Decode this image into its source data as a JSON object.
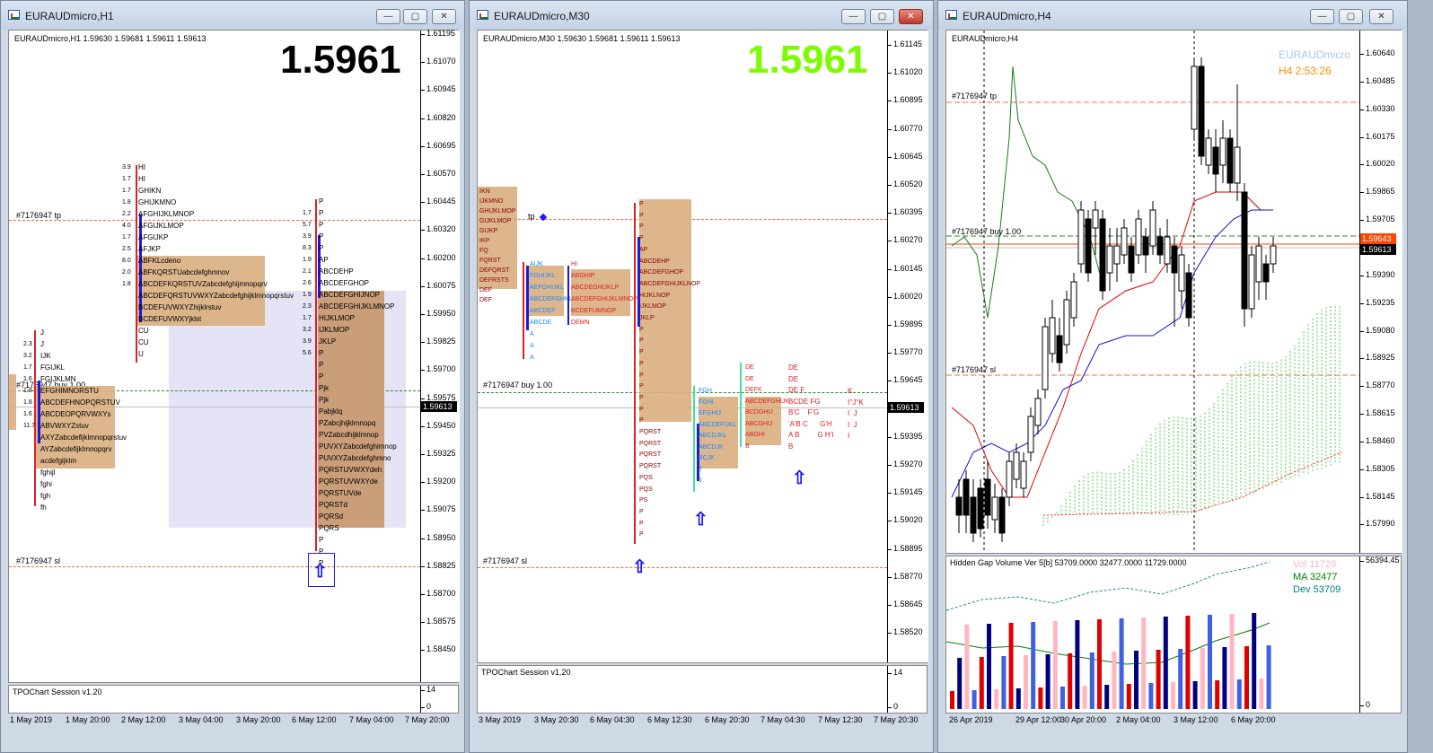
{
  "windows": [
    {
      "title": "EURAUDmicro,H1",
      "info": "EURAUDmicro,H1  1.59630 1.59681 1.59611 1.59613",
      "big_price": "1.5961",
      "big_color": "#000000",
      "price_ticks": [
        "1.61195",
        "1.61070",
        "1.60945",
        "1.60820",
        "1.60695",
        "1.60570",
        "1.60445",
        "1.60320",
        "1.60200",
        "1.60075",
        "1.59950",
        "1.59825",
        "1.59700",
        "1.59575",
        "1.59450",
        "1.59325",
        "1.59200",
        "1.59075",
        "1.58950",
        "1.58825",
        "1.58700",
        "1.58575",
        "1.58450"
      ],
      "current_price": "1.59613",
      "tp_label": "#7176947 tp",
      "buy_label": "#7176947 buy 1.00",
      "sl_label": "#7176947 sl",
      "sub_label": "TPOChart Session v1.20",
      "sub_ticks": [
        "14",
        "0"
      ],
      "time_ticks": [
        "1 May 2019",
        "1 May 20:00",
        "2 May 12:00",
        "3 May 04:00",
        "3 May 20:00",
        "6 May 12:00",
        "7 May 04:00",
        "7 May 20:00"
      ]
    },
    {
      "title": "EURAUDmicro,M30",
      "info": "EURAUDmicro,M30  1.59630 1.59681 1.59611 1.59613",
      "big_price": "1.5961",
      "big_color": "#7cfc00",
      "price_ticks": [
        "1.61145",
        "1.61020",
        "1.60895",
        "1.60770",
        "1.60645",
        "1.60520",
        "1.60395",
        "1.60270",
        "1.60145",
        "1.60020",
        "1.59895",
        "1.59770",
        "1.59645",
        "1.59520",
        "1.59395",
        "1.59270",
        "1.59145",
        "1.59020",
        "1.58895",
        "1.58770",
        "1.58645",
        "1.58520"
      ],
      "current_price": "1.59613",
      "tp_label": "tp",
      "buy_label": "#7176947 buy 1.00",
      "sl_label": "#7176947 sl",
      "sub_label": "TPOChart Session v1.20",
      "sub_ticks": [
        "14",
        "0"
      ],
      "time_ticks": [
        "3 May 2019",
        "3 May 20:30",
        "6 May 04:30",
        "6 May 12:30",
        "6 May 20:30",
        "7 May 04:30",
        "7 May 12:30",
        "7 May 20:30"
      ]
    },
    {
      "title": "EURAUDmicro,H4",
      "info": "EURAUDmicro,H4",
      "symbol_label": "EURAUDmicro",
      "timer_label": "H4   2:53:26",
      "price_ticks": [
        "1.60640",
        "1.60485",
        "1.60330",
        "1.60175",
        "1.60020",
        "1.59865",
        "1.59705",
        "1.59545",
        "1.59390",
        "1.59235",
        "1.59080",
        "1.58925",
        "1.58770",
        "1.58615",
        "1.58460",
        "1.58305",
        "1.58145",
        "1.57990"
      ],
      "current_price": "1.59613",
      "second_price": "1.59643",
      "tp_label": "#7176947 tp",
      "buy_label": "#7176947 buy 1.00",
      "sl_label": "#7176947 sl",
      "sub_label": "Hidden Gap Volume Ver 5[b] 53709.0000 32477.0000 11729.0000",
      "sub_top_tick": "56394.45",
      "sub_bottom_tick": "0",
      "legend": [
        {
          "name": "Vol",
          "value": "11729",
          "color": "#ffb6c1"
        },
        {
          "name": "MA",
          "value": "32477",
          "color": "#008000"
        },
        {
          "name": "Dev",
          "value": "53709",
          "color": "#008080"
        }
      ],
      "time_ticks": [
        "26 Apr 2019",
        "29 Apr 12:00",
        "30 Apr 20:00",
        "2 May 04:00",
        "3 May 12:00",
        "6 May 20:00"
      ]
    }
  ],
  "window_buttons": {
    "minimize": "—",
    "maximize": "▢",
    "close": "✕"
  },
  "tpo_h1_left": {
    "lines": [
      "J",
      "J",
      "IJK",
      "FGIJKL",
      "FGIJKLMN",
      "EFGHIMNORSTU",
      "ABCDEFHNOPQRSTUV",
      "ABCDEOPQRVWXYs",
      "ABVWXYZstuv",
      "AXYZabcdefijklmnopqrstuv",
      "AYZabcdefijklmnopqrv",
      "acdefgijklm",
      "fghijl",
      "fghi",
      "fgh",
      "fh"
    ],
    "nums": [
      "2.3",
      "3.2",
      "",
      "1.7",
      "1.6",
      "1.8",
      "",
      "",
      "",
      "",
      "1.8",
      "1.6",
      "",
      "11.7"
    ]
  },
  "tpo_h1_mid": {
    "lines": [
      "HI",
      "HI",
      "GHIKN",
      "GHIJKMNO",
      "AFGHIJKLMNOP",
      "AFGIJKLMOP",
      "AFGIJKP",
      "AFJKP",
      "ABFKLcdeno",
      "ABFKQRSTUabcdefghmnov",
      "ABCDEFKQRSTUVZabcdefghijmnopqrv",
      "ABCDEFQRSTUVWXYZabcdefghijklmnopqrstuv",
      "BCDEFUVWXYZhijklrstuv",
      "BCDEFUVWXYjklst",
      "CU",
      "CU",
      "U"
    ],
    "nums": [
      "3.9",
      "1.7",
      "1.7",
      "1.8",
      "",
      "",
      "",
      "2.2",
      "4.0",
      "1.7",
      "",
      "",
      "",
      "2.5",
      "8.0",
      "2.0",
      "1.8"
    ]
  },
  "tpo_h1_right": {
    "lines": [
      "P",
      "P",
      "P",
      "P",
      "P",
      "AP",
      "ABCDEHP",
      "ABCDEFGHOP",
      "ABCDEFGHIJNOP",
      "ABCDEFGHIJKLMNOP",
      "HIJKLMOP",
      "IJKLMOP",
      "JKLP",
      "P",
      "P",
      "P",
      "Pjk",
      "Pjk",
      "Pabjklq",
      "PZabcjhijklmnopq",
      "PVZabcdhijklmnop",
      "PUVXYZabcdefghimnop",
      "PUVXYZabcdefghmno",
      "PQRSTUVWXYdeh",
      "PQRSTUVWXYde",
      "PQRSTUVde",
      "PQRSTd",
      "PQRSd",
      "PQRS",
      "P",
      "P",
      "P"
    ],
    "nums": [
      "",
      "1.7",
      "5.7",
      "3.9",
      "",
      "",
      "",
      "",
      "",
      "",
      "",
      "",
      "",
      "",
      "8.3",
      "1.9",
      "2.1",
      "2.6",
      "",
      "",
      "",
      "",
      "1.9",
      "",
      "",
      "2.3",
      "1.7",
      "3.2",
      "3.9",
      "",
      "5.6"
    ]
  },
  "tpo_m30_left": {
    "lines": [
      "IKN",
      "IJKMNO",
      "GHIJKLMOP",
      "GIJKLMOP",
      "GIJKP",
      "IKP",
      "FQ",
      "FQRST",
      "DEFQRST",
      "DEFRSTS",
      "DEF",
      "DEF"
    ]
  },
  "tpo_m30_b": {
    "lines": [
      "AIJK",
      "FGHIJKL",
      "AEFGHIJKL",
      "ABCDEFGHKL",
      "ABCDEF",
      "ABCDE",
      "A",
      "A",
      "A"
    ]
  },
  "tpo_m30_c": {
    "lines": [
      "HI",
      "ABGHIP",
      "ABCDEGHIJKLP",
      "ABCDEFGHIJKLMNOP",
      "BCDEFIJMNOP",
      "DEMN"
    ]
  },
  "tpo_m30_d": {
    "lines": [
      "P",
      "P",
      "P",
      "P",
      "AP",
      "ABCDEHP",
      "ABCDEFGHOP",
      "ABCDEFGHIJKLNOP",
      "HIJKLNOP",
      "IJKLMOP",
      "JKLP",
      "P",
      "P",
      "P",
      "P",
      "P",
      "P",
      "P",
      "P",
      "P",
      "PQRST",
      "PQRST",
      "PQRST",
      "PQRST",
      "PQS",
      "PQS",
      "PS",
      "P",
      "P",
      "P"
    ]
  },
  "tpo_m30_e": {
    "lines": [
      "FGH",
      "FGHI",
      "EFGHIJ",
      "ABCDEFIJKL",
      "ABCDJKL",
      "ABCDJK",
      "BCJK",
      "J",
      "J"
    ]
  },
  "tpo_m30_f": {
    "lines": [
      "DE",
      "DE",
      "DEFK",
      "ABCDEFGHIJK",
      "BCDGHIJ",
      "ABCGHIJ",
      "ABGHI",
      "B"
    ]
  },
  "tpo_m30_g": {
    "lines": [
      "DE",
      "DE",
      "DE F",
      "BCDE FG",
      "B'C    F'G",
      "'A'B C      G'H",
      "A B         G H'I",
      "B"
    ]
  },
  "tpo_m30_h": {
    "lines": [
      "K",
      "I''J''K",
      "I  J",
      "I  J",
      "I"
    ]
  }
}
